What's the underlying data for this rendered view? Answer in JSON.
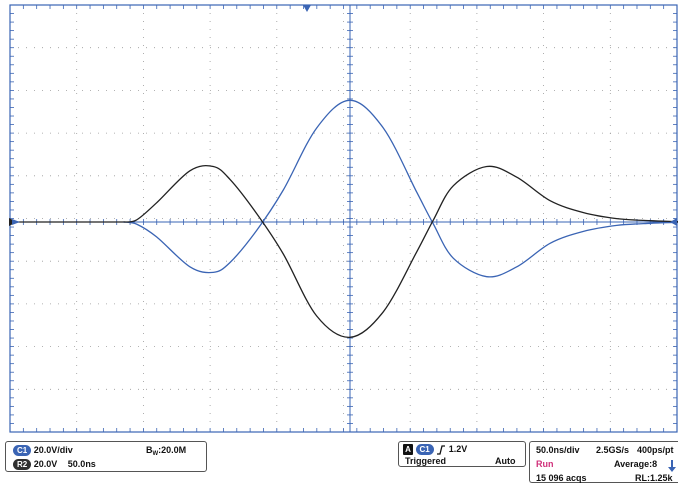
{
  "channels": {
    "c1": {
      "badge": "C1",
      "scale": "20.0V/div",
      "color": "#3a64b4"
    },
    "r2": {
      "badge": "R2",
      "scale": "20.0V",
      "time": "50.0ns",
      "color": "#2f2f2f"
    },
    "bandwidth": {
      "prefix": "B",
      "sub": "W",
      "value": ":20.0M"
    }
  },
  "trigger": {
    "mode_badge": "A",
    "source_badge": "C1",
    "slope_icon": "rising-edge-icon",
    "level": "1.2V",
    "status": "Triggered",
    "sweep": "Auto"
  },
  "acquisition": {
    "timebase": "50.0ns/div",
    "sample_rate": "2.5GS/s",
    "resolution": "400ps/pt",
    "run_state": "Run",
    "average": "Average:8",
    "acqs": "15 096 acqs",
    "record_length": "RL:1.25k",
    "run_color": "#d0307a"
  },
  "waveforms": {
    "center_time_div": 0,
    "black_trace": {
      "name": "R2",
      "color": "#222222",
      "points": [
        [
          -3.4,
          0
        ],
        [
          -3.2,
          0.05
        ],
        [
          -2.9,
          0.45
        ],
        [
          -2.4,
          1.2
        ],
        [
          -2.05,
          1.3
        ],
        [
          -1.8,
          1.0
        ],
        [
          -1.4,
          0.2
        ],
        [
          -1.0,
          -0.75
        ],
        [
          -0.5,
          -2.2
        ],
        [
          0,
          -2.7
        ],
        [
          0.5,
          -2.1
        ],
        [
          1.0,
          -0.7
        ],
        [
          1.25,
          0.05
        ],
        [
          1.55,
          0.85
        ],
        [
          2.05,
          1.3
        ],
        [
          2.5,
          1.05
        ],
        [
          3.0,
          0.5
        ],
        [
          3.5,
          0.22
        ],
        [
          4.0,
          0.08
        ],
        [
          4.5,
          0.03
        ],
        [
          5.0,
          0.01
        ],
        [
          5.5,
          0.0
        ],
        [
          8.0,
          0.0
        ]
      ]
    },
    "blue_trace": {
      "name": "C1",
      "color": "#3a64b4",
      "points": [
        [
          -3.4,
          0
        ],
        [
          -3.2,
          -0.05
        ],
        [
          -2.9,
          -0.35
        ],
        [
          -2.4,
          -1.05
        ],
        [
          -2.05,
          -1.18
        ],
        [
          -1.8,
          -0.95
        ],
        [
          -1.4,
          -0.2
        ],
        [
          -1.0,
          0.75
        ],
        [
          -0.5,
          2.2
        ],
        [
          0,
          2.85
        ],
        [
          0.5,
          2.2
        ],
        [
          1.0,
          0.7
        ],
        [
          1.25,
          -0.05
        ],
        [
          1.55,
          -0.85
        ],
        [
          2.05,
          -1.28
        ],
        [
          2.5,
          -1.05
        ],
        [
          3.0,
          -0.5
        ],
        [
          3.5,
          -0.22
        ],
        [
          4.0,
          -0.08
        ],
        [
          4.5,
          -0.03
        ],
        [
          5.0,
          -0.01
        ],
        [
          5.5,
          0.0
        ],
        [
          8.0,
          0.0
        ]
      ]
    }
  }
}
